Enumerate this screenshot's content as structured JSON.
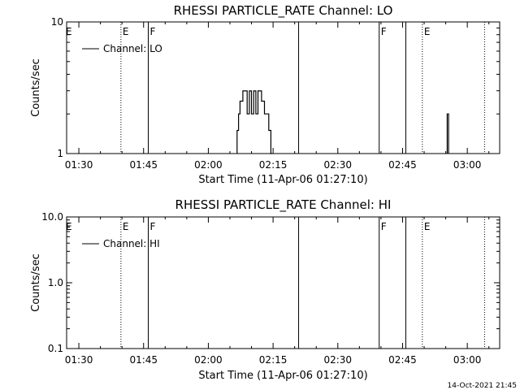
{
  "footer": {
    "timestamp": "14-Oct-2021 21:45"
  },
  "chart_data": [
    {
      "type": "line",
      "title": "RHESSI PARTICLE_RATE Channel: LO",
      "xlabel": "Start Time (11-Apr-06 01:27:10)",
      "ylabel": "Counts/sec",
      "yscale": "log",
      "xlim": [
        "01:27:10",
        "03:07:30"
      ],
      "ylim": [
        1,
        10
      ],
      "xticks": [
        "01:30",
        "01:45",
        "02:00",
        "02:15",
        "02:30",
        "02:45",
        "03:00"
      ],
      "yticks": [
        "1",
        "10"
      ],
      "legend": {
        "label": "Channel: LO",
        "position": "top-left"
      },
      "series": [
        {
          "name": "Channel: LO",
          "points": [
            [
              "02:06:40",
              1
            ],
            [
              "02:06:40",
              1.5
            ],
            [
              "02:07:00",
              1.5
            ],
            [
              "02:07:00",
              2
            ],
            [
              "02:07:20",
              2
            ],
            [
              "02:07:20",
              2.5
            ],
            [
              "02:08:00",
              2.5
            ],
            [
              "02:08:00",
              2.99
            ],
            [
              "02:09:00",
              2.99
            ],
            [
              "02:09:00",
              2
            ],
            [
              "02:09:30",
              2
            ],
            [
              "02:09:30",
              2.99
            ],
            [
              "02:10:00",
              2.99
            ],
            [
              "02:10:00",
              2
            ],
            [
              "02:10:30",
              2
            ],
            [
              "02:10:30",
              2.99
            ],
            [
              "02:11:00",
              2.99
            ],
            [
              "02:11:00",
              2
            ],
            [
              "02:11:30",
              2
            ],
            [
              "02:11:30",
              2.99
            ],
            [
              "02:12:20",
              2.99
            ],
            [
              "02:12:20",
              2.5
            ],
            [
              "02:13:00",
              2.5
            ],
            [
              "02:13:00",
              2
            ],
            [
              "02:14:00",
              2
            ],
            [
              "02:14:00",
              1.5
            ],
            [
              "02:14:30",
              1.5
            ],
            [
              "02:14:30",
              1
            ],
            [
              "02:14:50",
              1
            ]
          ]
        },
        {
          "name": "spike",
          "points": [
            [
              "02:55:20",
              1
            ],
            [
              "02:55:20",
              2
            ],
            [
              "02:55:40",
              2
            ],
            [
              "02:55:40",
              1
            ]
          ]
        }
      ],
      "annotations": [
        {
          "time": "01:39:45",
          "style": "dotted",
          "label": "E"
        },
        {
          "time": "01:46:05",
          "style": "solid",
          "label": "F"
        },
        {
          "time": "02:20:55",
          "style": "solid",
          "label": ""
        },
        {
          "time": "02:39:35",
          "style": "solid",
          "label": "F"
        },
        {
          "time": "02:45:45",
          "style": "solid",
          "label": ""
        },
        {
          "time": "02:49:35",
          "style": "dotted",
          "label": "E"
        },
        {
          "time": "03:04:00",
          "style": "dotted",
          "label": ""
        }
      ]
    },
    {
      "type": "line",
      "title": "RHESSI PARTICLE_RATE Channel: HI",
      "xlabel": "Start Time (11-Apr-06 01:27:10)",
      "ylabel": "Counts/sec",
      "yscale": "log",
      "xlim": [
        "01:27:10",
        "03:07:30"
      ],
      "ylim": [
        0.1,
        10
      ],
      "xticks": [
        "01:30",
        "01:45",
        "02:00",
        "02:15",
        "02:30",
        "02:45",
        "03:00"
      ],
      "yticks": [
        "0.1",
        "1.0",
        "10.0"
      ],
      "legend": {
        "label": "Channel: HI",
        "position": "top-left"
      },
      "series": [
        {
          "name": "Channel: HI",
          "points": []
        }
      ],
      "annotations": [
        {
          "time": "01:39:45",
          "style": "dotted",
          "label": "E"
        },
        {
          "time": "01:46:05",
          "style": "solid",
          "label": "F"
        },
        {
          "time": "02:20:55",
          "style": "solid",
          "label": ""
        },
        {
          "time": "02:39:35",
          "style": "solid",
          "label": "F"
        },
        {
          "time": "02:45:45",
          "style": "solid",
          "label": ""
        },
        {
          "time": "02:49:35",
          "style": "dotted",
          "label": "E"
        },
        {
          "time": "03:04:00",
          "style": "dotted",
          "label": ""
        }
      ]
    }
  ]
}
